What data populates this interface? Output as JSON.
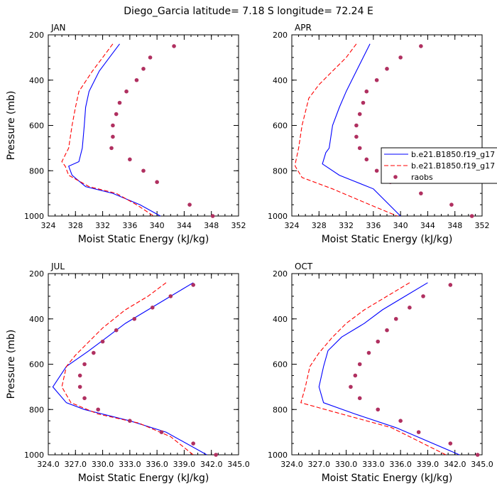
{
  "figure": {
    "title": "Diego_Garcia  latitude= 7.18 S longitude= 72.24 E"
  },
  "legend": {
    "entries": [
      {
        "label": "b.e21.B1850.f19_g17",
        "series": "model_a",
        "style": "solid",
        "color": "#0000ff"
      },
      {
        "label": "b.e21.B1850.f19_g17",
        "series": "model_b",
        "style": "dashed",
        "color": "#ff0000"
      },
      {
        "label": "raobs",
        "series": "raobs",
        "style": "dot",
        "color": "#b03060"
      }
    ]
  },
  "colors": {
    "model_a": "#0000ff",
    "model_b": "#ff0000",
    "raobs": "#b03060"
  },
  "chart_data": [
    {
      "type": "line",
      "title": "JAN",
      "xlabel": "Moist Static Energy (kJ/kg)",
      "ylabel": "Pressure (mb)",
      "xlim": [
        324,
        352
      ],
      "ylim": [
        1000,
        200
      ],
      "xticks": [
        324,
        328,
        332,
        336,
        340,
        344,
        348,
        352
      ],
      "xtick_labels": [
        "324",
        "328",
        "332",
        "336",
        "340",
        "344",
        "348",
        "352"
      ],
      "yticks": [
        200,
        400,
        600,
        800,
        1000
      ],
      "ytick_labels": [
        "200",
        "400",
        "600",
        "800",
        "1000"
      ],
      "series": [
        {
          "key": "model_a",
          "style": "solid",
          "x": [
            334.5,
            333.0,
            331.5,
            330.0,
            329.5,
            329.3,
            329.0,
            328.5,
            327.0,
            327.5,
            329.5,
            333.5,
            337.5,
            340.5
          ],
          "y": [
            240,
            300,
            360,
            450,
            520,
            600,
            700,
            760,
            780,
            820,
            870,
            900,
            950,
            1000
          ]
        },
        {
          "key": "model_b",
          "style": "dashed",
          "x": [
            333.5,
            332.0,
            330.5,
            328.5,
            328.0,
            327.5,
            327.0,
            326.0,
            326.5,
            327.0,
            330.0,
            334.0,
            337.0,
            339.5
          ],
          "y": [
            240,
            300,
            360,
            450,
            520,
            600,
            700,
            760,
            780,
            820,
            870,
            900,
            950,
            1000
          ]
        },
        {
          "key": "raobs",
          "style": "dot",
          "x": [
            342.5,
            339.0,
            338.0,
            337.0,
            335.5,
            334.5,
            334.0,
            333.5,
            333.5,
            333.3,
            336.0,
            338.0,
            340.0,
            344.8,
            348.2
          ],
          "y": [
            250,
            300,
            350,
            400,
            450,
            500,
            550,
            600,
            650,
            700,
            750,
            800,
            850,
            950,
            1000
          ]
        }
      ]
    },
    {
      "type": "line",
      "title": "APR",
      "xlabel": "Moist Static Energy (kJ/kg)",
      "ylabel": "",
      "xlim": [
        324,
        352
      ],
      "ylim": [
        1000,
        200
      ],
      "xticks": [
        324,
        328,
        332,
        336,
        340,
        344,
        348,
        352
      ],
      "xtick_labels": [
        "324",
        "328",
        "332",
        "336",
        "340",
        "344",
        "348",
        "352"
      ],
      "yticks": [
        200,
        400,
        600,
        800,
        1000
      ],
      "ytick_labels": [
        "200",
        "400",
        "600",
        "800",
        "1000"
      ],
      "series": [
        {
          "key": "model_a",
          "style": "solid",
          "x": [
            335.5,
            334.5,
            333.5,
            332.0,
            331.0,
            330.0,
            329.5,
            329.0,
            328.5,
            331.0,
            336.0,
            340.0
          ],
          "y": [
            240,
            300,
            360,
            450,
            520,
            600,
            700,
            720,
            770,
            820,
            880,
            1000
          ]
        },
        {
          "key": "model_b",
          "style": "dashed",
          "x": [
            333.5,
            332.0,
            330.0,
            328.0,
            326.5,
            325.5,
            325.0,
            324.5,
            324.5,
            325.5,
            330.0,
            335.5,
            339.5
          ],
          "y": [
            240,
            300,
            360,
            420,
            480,
            600,
            700,
            770,
            780,
            830,
            880,
            950,
            1000
          ]
        },
        {
          "key": "raobs",
          "style": "dot",
          "x": [
            343.0,
            340.0,
            338.0,
            336.5,
            335.0,
            334.5,
            334.0,
            333.5,
            333.5,
            334.0,
            335.0,
            336.5,
            338.5,
            343.0,
            347.5,
            350.5
          ],
          "y": [
            250,
            300,
            350,
            400,
            450,
            500,
            550,
            600,
            650,
            700,
            750,
            800,
            850,
            900,
            950,
            1000
          ]
        }
      ]
    },
    {
      "type": "line",
      "title": "JUL",
      "xlabel": "Moist Static Energy (kJ/kg)",
      "ylabel": "Pressure (mb)",
      "xlim": [
        324,
        345
      ],
      "ylim": [
        1000,
        200
      ],
      "xticks": [
        324,
        327,
        330,
        333,
        336,
        339,
        342,
        345
      ],
      "xtick_labels": [
        "324.0",
        "327.0",
        "330.0",
        "333.0",
        "336.0",
        "339.0",
        "342.0",
        "345.0"
      ],
      "yticks": [
        200,
        400,
        600,
        800,
        1000
      ],
      "ytick_labels": [
        "200",
        "400",
        "600",
        "800",
        "1000"
      ],
      "series": [
        {
          "key": "model_a",
          "style": "solid",
          "x": [
            340.0,
            337.5,
            335.0,
            332.5,
            330.5,
            328.5,
            326.0,
            324.5,
            326.0,
            328.0,
            333.0,
            337.0,
            341.5
          ],
          "y": [
            240,
            300,
            360,
            420,
            480,
            540,
            610,
            700,
            770,
            800,
            850,
            900,
            1000
          ]
        },
        {
          "key": "model_b",
          "style": "dashed",
          "x": [
            337.0,
            335.0,
            332.5,
            330.0,
            328.5,
            327.0,
            326.0,
            325.5,
            326.5,
            329.5,
            334.0,
            337.5,
            340.0
          ],
          "y": [
            240,
            300,
            360,
            440,
            500,
            560,
            610,
            700,
            770,
            820,
            860,
            920,
            1000
          ]
        },
        {
          "key": "raobs",
          "style": "dot",
          "x": [
            340.0,
            337.5,
            335.5,
            333.5,
            331.5,
            330.0,
            329.0,
            328.0,
            327.5,
            327.5,
            328.0,
            329.5,
            333.0,
            336.5,
            340.0,
            342.5
          ],
          "y": [
            250,
            300,
            350,
            400,
            450,
            500,
            550,
            600,
            650,
            700,
            750,
            800,
            850,
            900,
            950,
            1000
          ]
        }
      ]
    },
    {
      "type": "line",
      "title": "OCT",
      "xlabel": "Moist Static Energy (kJ/kg)",
      "ylabel": "",
      "xlim": [
        324,
        345
      ],
      "ylim": [
        1000,
        200
      ],
      "xticks": [
        324,
        327,
        330,
        333,
        336,
        339,
        342,
        345
      ],
      "xtick_labels": [
        "324.0",
        "327.0",
        "330.0",
        "333.0",
        "336.0",
        "339.0",
        "342.0",
        "345.0"
      ],
      "yticks": [
        200,
        400,
        600,
        800,
        1000
      ],
      "ytick_labels": [
        "200",
        "400",
        "600",
        "800",
        "1000"
      ],
      "series": [
        {
          "key": "model_a",
          "style": "solid",
          "x": [
            339.0,
            336.5,
            334.0,
            332.0,
            329.5,
            328.0,
            327.5,
            327.0,
            327.5,
            331.0,
            335.5,
            342.5
          ],
          "y": [
            240,
            300,
            360,
            420,
            480,
            540,
            610,
            700,
            770,
            820,
            880,
            1000
          ]
        },
        {
          "key": "model_b",
          "style": "dashed",
          "x": [
            337.0,
            334.5,
            332.0,
            330.0,
            328.5,
            327.0,
            326.0,
            325.5,
            325.0,
            329.5,
            335.0,
            341.0
          ],
          "y": [
            240,
            300,
            360,
            420,
            480,
            550,
            610,
            700,
            770,
            820,
            880,
            1000
          ]
        },
        {
          "key": "raobs",
          "style": "dot",
          "x": [
            341.5,
            338.5,
            337.0,
            335.5,
            334.5,
            333.5,
            332.5,
            331.5,
            331.0,
            330.5,
            331.5,
            333.5,
            336.0,
            338.0,
            341.5,
            344.5
          ],
          "y": [
            250,
            300,
            350,
            400,
            450,
            500,
            550,
            600,
            650,
            700,
            750,
            800,
            850,
            900,
            950,
            1000
          ]
        }
      ]
    }
  ]
}
